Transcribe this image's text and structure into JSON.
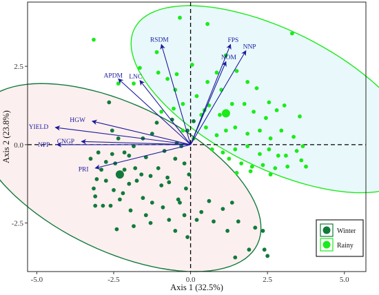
{
  "chart_data": {
    "type": "scatter",
    "subtype": "pca-biplot",
    "xlabel": "Axis 1 (32.5%)",
    "ylabel": "Axis 2 (23.8%)",
    "xlim": [
      -5.3,
      5.7
    ],
    "ylim": [
      -4.05,
      4.55
    ],
    "xticks": [
      -5.0,
      -2.5,
      0.0,
      2.5,
      5.0
    ],
    "xtick_labels": [
      "-5.0",
      "-2.5",
      "0.0",
      "2.5",
      "5.0"
    ],
    "yticks": [
      -2.5,
      0.0,
      2.5
    ],
    "ytick_labels": [
      "-2.5",
      "0.0",
      "2.5"
    ],
    "grid": false,
    "reference_lines": {
      "x": 0,
      "y": 0,
      "style": "dashed"
    },
    "legend": {
      "placement": "bottom-right",
      "entries": [
        {
          "label": "Winter",
          "color": "#117a3b"
        },
        {
          "label": "Rainy",
          "color": "#1aeb1a"
        }
      ]
    },
    "colors": {
      "winter": "#117a3b",
      "rainy": "#1aeb1a",
      "arrow": "#1a1a9c",
      "winter_fill": "#fbeaea",
      "rainy_fill": "#e2f7f9"
    },
    "ellipses": [
      {
        "series": "Winter",
        "center": [
          -2.35,
          -1.05
        ],
        "semi_axes": [
          5.0,
          2.35
        ],
        "angle_deg": -25
      },
      {
        "series": "Rainy",
        "center": [
          2.75,
          1.45
        ],
        "semi_axes": [
          5.1,
          2.2
        ],
        "angle_deg": -26
      }
    ],
    "loadings": [
      {
        "label": "RSDM",
        "x": -0.95,
        "y": 3.2
      },
      {
        "label": "FPS",
        "x": 1.3,
        "y": 3.2
      },
      {
        "label": "NNP",
        "x": 1.8,
        "y": 3.0
      },
      {
        "label": "NOM",
        "x": 1.15,
        "y": 2.65
      },
      {
        "label": "APDM",
        "x": -2.35,
        "y": 2.1
      },
      {
        "label": "LNC",
        "x": -1.65,
        "y": 2.05
      },
      {
        "label": "HGW",
        "x": -3.2,
        "y": 0.75
      },
      {
        "label": "YIELD",
        "x": -4.4,
        "y": 0.55
      },
      {
        "label": "CNGP",
        "x": -3.55,
        "y": 0.1
      },
      {
        "label": "NPP",
        "x": -4.35,
        "y": 0.0
      },
      {
        "label": "PRI",
        "x": -3.1,
        "y": -0.75
      }
    ],
    "series": [
      {
        "name": "Winter",
        "centroid": [
          -2.3,
          -0.95
        ],
        "points": [
          [
            -2.65,
            1.35
          ],
          [
            -2.55,
            0.45
          ],
          [
            -2.35,
            0.2
          ],
          [
            -1.85,
            -0.05
          ],
          [
            -1.55,
            0.2
          ],
          [
            -1.25,
            0.35
          ],
          [
            -2.0,
            -0.35
          ],
          [
            -0.45,
            0.05
          ],
          [
            -0.1,
            0.45
          ],
          [
            0.1,
            0.75
          ],
          [
            -0.6,
            0.8
          ],
          [
            -1.1,
            0.7
          ],
          [
            -0.3,
            -0.05
          ],
          [
            -0.85,
            -0.2
          ],
          [
            -1.45,
            -0.4
          ],
          [
            -2.15,
            -0.25
          ],
          [
            -2.55,
            -0.3
          ],
          [
            -3.0,
            -0.25
          ],
          [
            -3.25,
            -0.45
          ],
          [
            -2.9,
            -0.8
          ],
          [
            -2.75,
            -0.55
          ],
          [
            -2.45,
            -0.6
          ],
          [
            -2.15,
            -0.8
          ],
          [
            -1.8,
            -0.75
          ],
          [
            -1.6,
            -0.95
          ],
          [
            -1.3,
            -1.0
          ],
          [
            -1.05,
            -0.75
          ],
          [
            -0.75,
            -1.05
          ],
          [
            -0.5,
            -0.45
          ],
          [
            -0.2,
            -0.6
          ],
          [
            -3.05,
            -1.1
          ],
          [
            -2.75,
            -1.15
          ],
          [
            -2.5,
            -1.45
          ],
          [
            -2.2,
            -1.55
          ],
          [
            -2.0,
            -1.25
          ],
          [
            -1.75,
            -1.15
          ],
          [
            -1.55,
            -1.7
          ],
          [
            -1.25,
            -1.85
          ],
          [
            -0.95,
            -1.3
          ],
          [
            -0.7,
            -1.2
          ],
          [
            -0.4,
            -1.75
          ],
          [
            -0.15,
            -1.4
          ],
          [
            -3.1,
            -1.65
          ],
          [
            -2.85,
            -1.95
          ],
          [
            -2.6,
            -1.95
          ],
          [
            -2.3,
            -1.75
          ],
          [
            -1.95,
            -2.1
          ],
          [
            -1.45,
            -2.25
          ],
          [
            -0.9,
            -2.0
          ],
          [
            -0.7,
            -2.4
          ],
          [
            -0.35,
            -1.85
          ],
          [
            -3.1,
            -1.95
          ],
          [
            -3.15,
            -1.4
          ],
          [
            -1.3,
            -2.5
          ],
          [
            -0.5,
            -2.75
          ],
          [
            -0.2,
            -2.25
          ],
          [
            0.2,
            -2.4
          ],
          [
            0.35,
            -2.15
          ],
          [
            -0.1,
            -2.95
          ],
          [
            0.75,
            -2.45
          ],
          [
            1.05,
            -2.05
          ],
          [
            1.2,
            -2.75
          ],
          [
            1.35,
            -1.85
          ],
          [
            1.55,
            -2.45
          ],
          [
            1.9,
            -3.35
          ],
          [
            2.1,
            -2.65
          ],
          [
            2.35,
            -2.75
          ],
          [
            2.4,
            -3.35
          ],
          [
            2.5,
            -3.55
          ],
          [
            1.45,
            -3.6
          ],
          [
            0.6,
            -1.8
          ],
          [
            -1.85,
            -2.6
          ],
          [
            -2.4,
            -2.7
          ],
          [
            -0.05,
            -0.95
          ]
        ]
      },
      {
        "name": "Rainy",
        "centroid": [
          1.15,
          1.0
        ],
        "points": [
          [
            -3.15,
            3.35
          ],
          [
            -0.35,
            4.05
          ],
          [
            0.55,
            3.85
          ],
          [
            3.3,
            3.55
          ],
          [
            -1.1,
            2.95
          ],
          [
            -0.45,
            2.25
          ],
          [
            -1.65,
            2.45
          ],
          [
            -2.35,
            1.95
          ],
          [
            -1.85,
            1.95
          ],
          [
            -1.05,
            2.3
          ],
          [
            -0.75,
            2.1
          ],
          [
            -0.5,
            1.75
          ],
          [
            -0.25,
            1.3
          ],
          [
            0.2,
            1.55
          ],
          [
            0.55,
            2.0
          ],
          [
            0.85,
            2.3
          ],
          [
            1.15,
            2.85
          ],
          [
            1.5,
            2.35
          ],
          [
            1.85,
            2.0
          ],
          [
            2.15,
            1.8
          ],
          [
            -0.55,
            1.15
          ],
          [
            -0.95,
            1.05
          ],
          [
            0.35,
            0.95
          ],
          [
            0.6,
            1.25
          ],
          [
            0.95,
            0.95
          ],
          [
            1.35,
            1.3
          ],
          [
            1.75,
            1.3
          ],
          [
            2.05,
            1.05
          ],
          [
            2.45,
            0.85
          ],
          [
            2.8,
            1.1
          ],
          [
            3.05,
            1.25
          ],
          [
            3.55,
            0.9
          ],
          [
            -0.25,
            0.45
          ],
          [
            0.1,
            0.2
          ],
          [
            0.5,
            0.55
          ],
          [
            0.85,
            0.3
          ],
          [
            1.15,
            0.45
          ],
          [
            1.45,
            0.55
          ],
          [
            1.85,
            0.35
          ],
          [
            2.25,
            0.45
          ],
          [
            2.6,
            0.2
          ],
          [
            2.95,
            0.45
          ],
          [
            3.35,
            0.25
          ],
          [
            3.45,
            -0.2
          ],
          [
            3.65,
            -0.05
          ],
          [
            1.05,
            -0.25
          ],
          [
            1.45,
            -0.15
          ],
          [
            1.85,
            -0.05
          ],
          [
            2.25,
            -0.3
          ],
          [
            2.55,
            -0.15
          ],
          [
            2.85,
            -0.35
          ],
          [
            3.1,
            -0.35
          ],
          [
            3.6,
            -0.5
          ],
          [
            1.25,
            -0.45
          ],
          [
            1.65,
            -0.6
          ],
          [
            2.0,
            -0.7
          ],
          [
            2.35,
            -0.65
          ],
          [
            2.75,
            -0.75
          ],
          [
            3.15,
            -0.7
          ],
          [
            3.75,
            -0.7
          ],
          [
            1.5,
            -0.9
          ],
          [
            1.95,
            -0.85
          ],
          [
            2.6,
            -0.95
          ],
          [
            0.7,
            -0.15
          ],
          [
            1.0,
            1.75
          ],
          [
            0.45,
            1.1
          ],
          [
            2.55,
            1.35
          ],
          [
            0.05,
            2.55
          ]
        ]
      }
    ]
  }
}
